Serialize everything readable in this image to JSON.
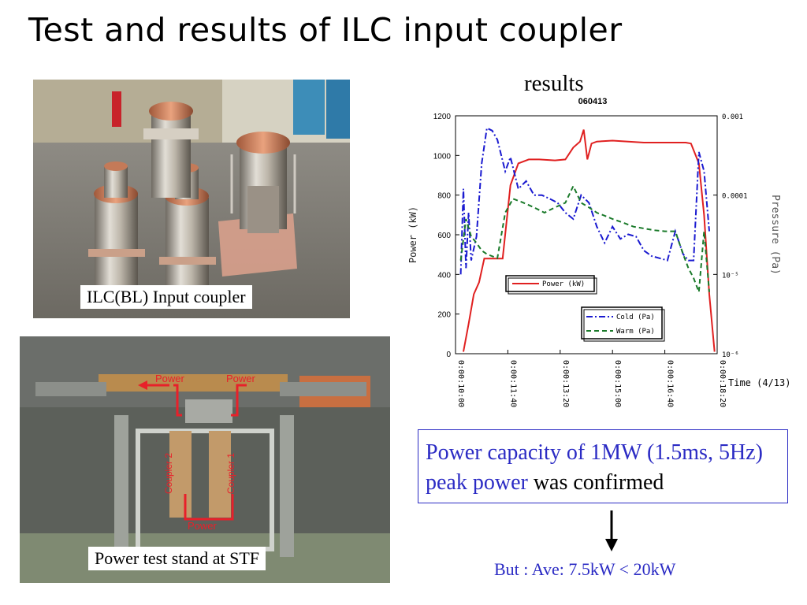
{
  "slide": {
    "title": "Test and results of ILC input coupler",
    "results_label": "results",
    "photo1_caption": "ILC(BL) Input coupler",
    "photo2_caption": "Power test stand at STF",
    "photo2_labels": {
      "power_left": "Power",
      "power_right": "Power",
      "power_bottom": "Power",
      "coupler_2": "Coupler 2",
      "coupler_1": "Coupler 1"
    },
    "confirm_blue": "Power capacity of 1MW (1.5ms, 5Hz) peak power",
    "confirm_black": " was confirmed",
    "footnote": "But : Ave: 7.5kW  < 20kW"
  },
  "chart_data": {
    "type": "line",
    "title": "060413",
    "xlabel": "Time (4/13)",
    "ylabel": "Power (kW)",
    "y2label": "Pressure (Pa)",
    "ylim": [
      0,
      1200
    ],
    "y2lim": [
      1e-06,
      0.001
    ],
    "y2scale": "log",
    "x_ticks": [
      "0:00:10:00",
      "0:00:11:40",
      "0:00:13:20",
      "0:00:15:00",
      "0:00:16:40",
      "0:00:18:20"
    ],
    "y_ticks": [
      "0",
      "200",
      "400",
      "600",
      "800",
      "1000",
      "1200"
    ],
    "y2_ticks": [
      "10⁻⁶",
      "10⁻⁵",
      "0.0001",
      "0.001"
    ],
    "legend_upper": "top-left",
    "legend_lower": "bottom-right",
    "colors": {
      "power": "#e02020",
      "cold": "#1a1ad0",
      "warm": "#1a7a2a"
    },
    "series": [
      {
        "name": "Power (kW)",
        "axis": "left",
        "x": [
          "0:00:10:15",
          "0:00:10:25",
          "0:00:10:35",
          "0:00:10:45",
          "0:00:10:55",
          "0:00:11:10",
          "0:00:11:30",
          "0:00:11:45",
          "0:00:12:00",
          "0:00:12:20",
          "0:00:12:40",
          "0:00:13:10",
          "0:00:13:30",
          "0:00:13:45",
          "0:00:13:58",
          "0:00:14:05",
          "0:00:14:12",
          "0:00:14:20",
          "0:00:14:30",
          "0:00:15:00",
          "0:00:15:30",
          "0:00:16:00",
          "0:00:16:30",
          "0:00:17:00",
          "0:00:17:20",
          "0:00:17:30",
          "0:00:17:45",
          "0:00:17:55",
          "0:00:18:05",
          "0:00:18:15"
        ],
        "values": [
          10,
          150,
          300,
          360,
          480,
          480,
          480,
          850,
          960,
          980,
          980,
          975,
          980,
          1040,
          1070,
          1130,
          980,
          1060,
          1070,
          1075,
          1070,
          1065,
          1065,
          1065,
          1065,
          1060,
          960,
          700,
          300,
          10
        ]
      },
      {
        "name": "Cold (Pa)",
        "axis": "right",
        "x": [
          "0:00:10:10",
          "0:00:10:15",
          "0:00:10:20",
          "0:00:10:25",
          "0:00:10:30",
          "0:00:10:40",
          "0:00:10:50",
          "0:00:11:00",
          "0:00:11:10",
          "0:00:11:20",
          "0:00:11:35",
          "0:00:11:45",
          "0:00:12:00",
          "0:00:12:15",
          "0:00:12:30",
          "0:00:12:45",
          "0:00:13:00",
          "0:00:13:15",
          "0:00:13:30",
          "0:00:13:45",
          "0:00:14:00",
          "0:00:14:15",
          "0:00:14:30",
          "0:00:14:45",
          "0:00:15:00",
          "0:00:15:15",
          "0:00:15:30",
          "0:00:15:45",
          "0:00:16:00",
          "0:00:16:15",
          "0:00:16:30",
          "0:00:16:45",
          "0:00:17:00",
          "0:00:17:15",
          "0:00:17:25",
          "0:00:17:35",
          "0:00:17:45",
          "0:00:17:55",
          "0:00:18:05"
        ],
        "values": [
          1e-05,
          0.00012,
          1.2e-05,
          6e-05,
          1.5e-05,
          3e-05,
          0.00025,
          0.0007,
          0.00065,
          0.0005,
          0.0002,
          0.0003,
          0.00012,
          0.00015,
          0.0001,
          0.0001,
          9e-05,
          8e-05,
          6e-05,
          5e-05,
          0.0001,
          8e-05,
          4e-05,
          2.5e-05,
          4e-05,
          2.8e-05,
          3.2e-05,
          3e-05,
          2e-05,
          1.7e-05,
          1.6e-05,
          1.5e-05,
          3.5e-05,
          1.8e-05,
          1.5e-05,
          1.5e-05,
          0.00035,
          0.0002,
          3.5e-05
        ]
      },
      {
        "name": "Warm (Pa)",
        "axis": "right",
        "x": [
          "0:00:10:10",
          "0:00:10:20",
          "0:00:10:30",
          "0:00:10:40",
          "0:00:10:50",
          "0:00:11:00",
          "0:00:11:20",
          "0:00:11:35",
          "0:00:11:50",
          "0:00:12:10",
          "0:00:12:30",
          "0:00:12:50",
          "0:00:13:10",
          "0:00:13:30",
          "0:00:13:45",
          "0:00:14:00",
          "0:00:14:15",
          "0:00:14:30",
          "0:00:14:45",
          "0:00:15:00",
          "0:00:15:20",
          "0:00:15:40",
          "0:00:16:00",
          "0:00:16:20",
          "0:00:16:40",
          "0:00:17:00",
          "0:00:17:15",
          "0:00:17:25",
          "0:00:17:35",
          "0:00:17:45",
          "0:00:17:55",
          "0:00:18:05"
        ],
        "values": [
          1.5e-05,
          5e-05,
          3e-05,
          2.5e-05,
          2e-05,
          1.8e-05,
          1.6e-05,
          6e-05,
          9e-05,
          8e-05,
          7e-05,
          6e-05,
          7e-05,
          8e-05,
          0.00013,
          8e-05,
          7e-05,
          6e-05,
          5.5e-05,
          5e-05,
          4.5e-05,
          4e-05,
          3.8e-05,
          3.6e-05,
          3.5e-05,
          3.5e-05,
          1.8e-05,
          1.2e-05,
          9e-06,
          6e-06,
          3.5e-05,
          6e-06
        ]
      }
    ]
  }
}
